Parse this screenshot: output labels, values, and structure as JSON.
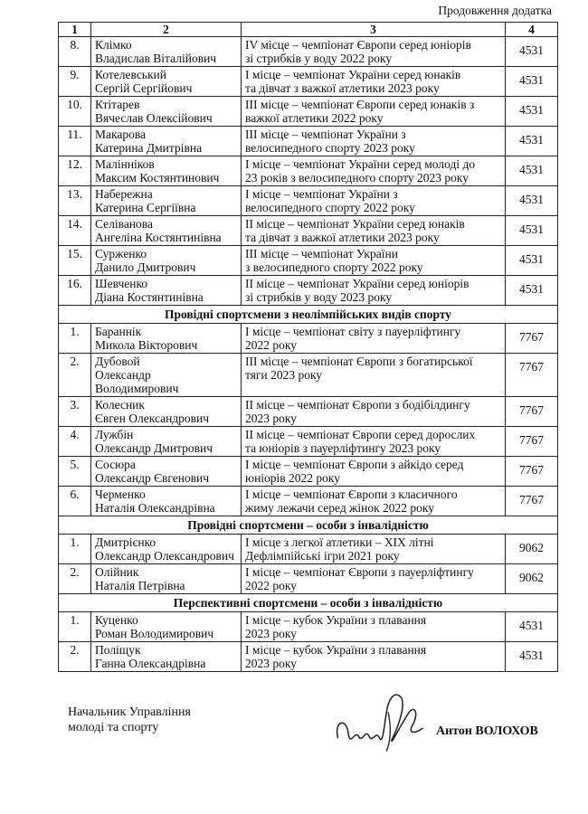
{
  "header": {
    "continuation": "Продовження додатка"
  },
  "table": {
    "columns": [
      "1",
      "2",
      "3",
      "4"
    ],
    "blocks": [
      {
        "section": "",
        "rows": [
          {
            "n": "8.",
            "name": [
              "Клімко",
              "Владислав Віталійович"
            ],
            "achievement": [
              "IV місце – чемпіонат Європи серед юніорів",
              "зі стрибків у воду 2022 року"
            ],
            "amount": "4531"
          },
          {
            "n": "9.",
            "name": [
              "Котелевський",
              "Сергій Сергійович"
            ],
            "achievement": [
              "І місце – чемпіонат України серед юнаків",
              "та дівчат з важкої атлетики 2023 року"
            ],
            "amount": "4531"
          },
          {
            "n": "10.",
            "name": [
              "Ктітарев",
              "Вячеслав Олексійович"
            ],
            "achievement": [
              "ІІІ місце – чемпіонат Європи серед юнаків з",
              "важкої атлетики 2022 року"
            ],
            "amount": "4531"
          },
          {
            "n": "11.",
            "name": [
              "Макарова",
              "Катерина Дмитрівна"
            ],
            "achievement": [
              "ІІІ місце – чемпіонат України з",
              "велосипедного спорту 2023 року"
            ],
            "amount": "4531"
          },
          {
            "n": "12.",
            "name": [
              "Малінніков",
              "Максим Костянтинович"
            ],
            "achievement": [
              "І місце – чемпіонат України серед молоді до",
              "23 років з велосипедного спорту 2023 року"
            ],
            "amount": "4531"
          },
          {
            "n": "13.",
            "name": [
              "Набережна",
              "Катерина Сергіївна"
            ],
            "achievement": [
              "І місце – чемпіонат України з",
              "велосипедного спорту 2022 року"
            ],
            "amount": "4531"
          },
          {
            "n": "14.",
            "name": [
              "Селіванова",
              "Ангеліна Костянтинівна"
            ],
            "achievement": [
              "ІІ місце – чемпіонат України серед юнаків",
              "та дівчат з важкої атлетики 2023 року"
            ],
            "amount": "4531"
          },
          {
            "n": "15.",
            "name": [
              "Сурженко",
              "Данило Дмитрович"
            ],
            "achievement": [
              "ІІІ місце – чемпіонат України",
              "з велосипедного спорту 2022 року"
            ],
            "amount": "4531"
          },
          {
            "n": "16.",
            "name": [
              "Шевченко",
              "Діана Костянтинівна"
            ],
            "achievement": [
              "ІІ місце – чемпіонат України серед юніорів",
              "зі стрибків у воду 2023 року"
            ],
            "amount": "4531"
          }
        ]
      },
      {
        "section": "Провідні спортсмени з неолімпійських видів спорту",
        "rows": [
          {
            "n": "1.",
            "name": [
              "Бараннік",
              "Микола Вікторович"
            ],
            "achievement": [
              "І місце – чемпіонат світу з пауерліфтингу",
              "2022 року"
            ],
            "amount": "7767"
          },
          {
            "n": "2.",
            "name": [
              "Дубовой",
              "Олександр",
              "Володимирович"
            ],
            "achievement": [
              "ІІІ місце – чемпіонат Європи з богатирської",
              "тяги 2023 року"
            ],
            "amount": "7767"
          },
          {
            "n": "3.",
            "name": [
              "Колесник",
              "Євген Олександрович"
            ],
            "achievement": [
              "ІІ місце – чемпіонат Європи з бодібілдингу",
              "2023 року"
            ],
            "amount": "7767"
          },
          {
            "n": "4.",
            "name": [
              "Лужбін",
              "Олександр Дмитрович"
            ],
            "achievement": [
              "ІІ місце – чемпіонат Європи серед дорослих",
              "та юніорів з пауерліфтингу 2023 року"
            ],
            "amount": "7767"
          },
          {
            "n": "5.",
            "name": [
              "Сосюра",
              "Олександр Євгенович"
            ],
            "achievement": [
              "І місце – чемпіонат Європи з айкідо серед",
              "юніорів 2022 року"
            ],
            "amount": "7767"
          },
          {
            "n": "6.",
            "name": [
              "Черменко",
              "Наталія Олександрівна"
            ],
            "achievement": [
              "І місце – чемпіонат Європи з класичного",
              "жиму лежачи серед жінок 2022 року"
            ],
            "amount": "7767"
          }
        ]
      },
      {
        "section": "Провідні спортсмени – особи з інвалідністю",
        "rows": [
          {
            "n": "1.",
            "name": [
              "Дмитрієнко",
              "Олександр Олександрович"
            ],
            "achievement": [
              "І місце з легкої атлетики – XIX літні",
              "Дефлімпійські ігри 2021 року"
            ],
            "amount": "9062"
          },
          {
            "n": "2.",
            "name": [
              "Олійник",
              "Наталія Петрівна"
            ],
            "achievement": [
              "І місце – чемпіонат Європи з пауерліфтингу",
              "2022 року"
            ],
            "amount": "9062"
          }
        ]
      },
      {
        "section": "Перспективні спортсмени – особи з інвалідністю",
        "rows": [
          {
            "n": "1.",
            "name": [
              "Куценко",
              "Роман Володимирович"
            ],
            "achievement": [
              "І місце – кубок України з плавання",
              "2023 року"
            ],
            "amount": "4531"
          },
          {
            "n": "2.",
            "name": [
              "Поліщук",
              "Ганна Олександрівна"
            ],
            "achievement": [
              "І місце – кубок України з плавання",
              "2023 року"
            ],
            "amount": "4531"
          }
        ]
      }
    ]
  },
  "footer": {
    "position": [
      "Начальник Управління",
      "молоді та спорту"
    ],
    "signatory": "Антон ВОЛОХОВ"
  }
}
